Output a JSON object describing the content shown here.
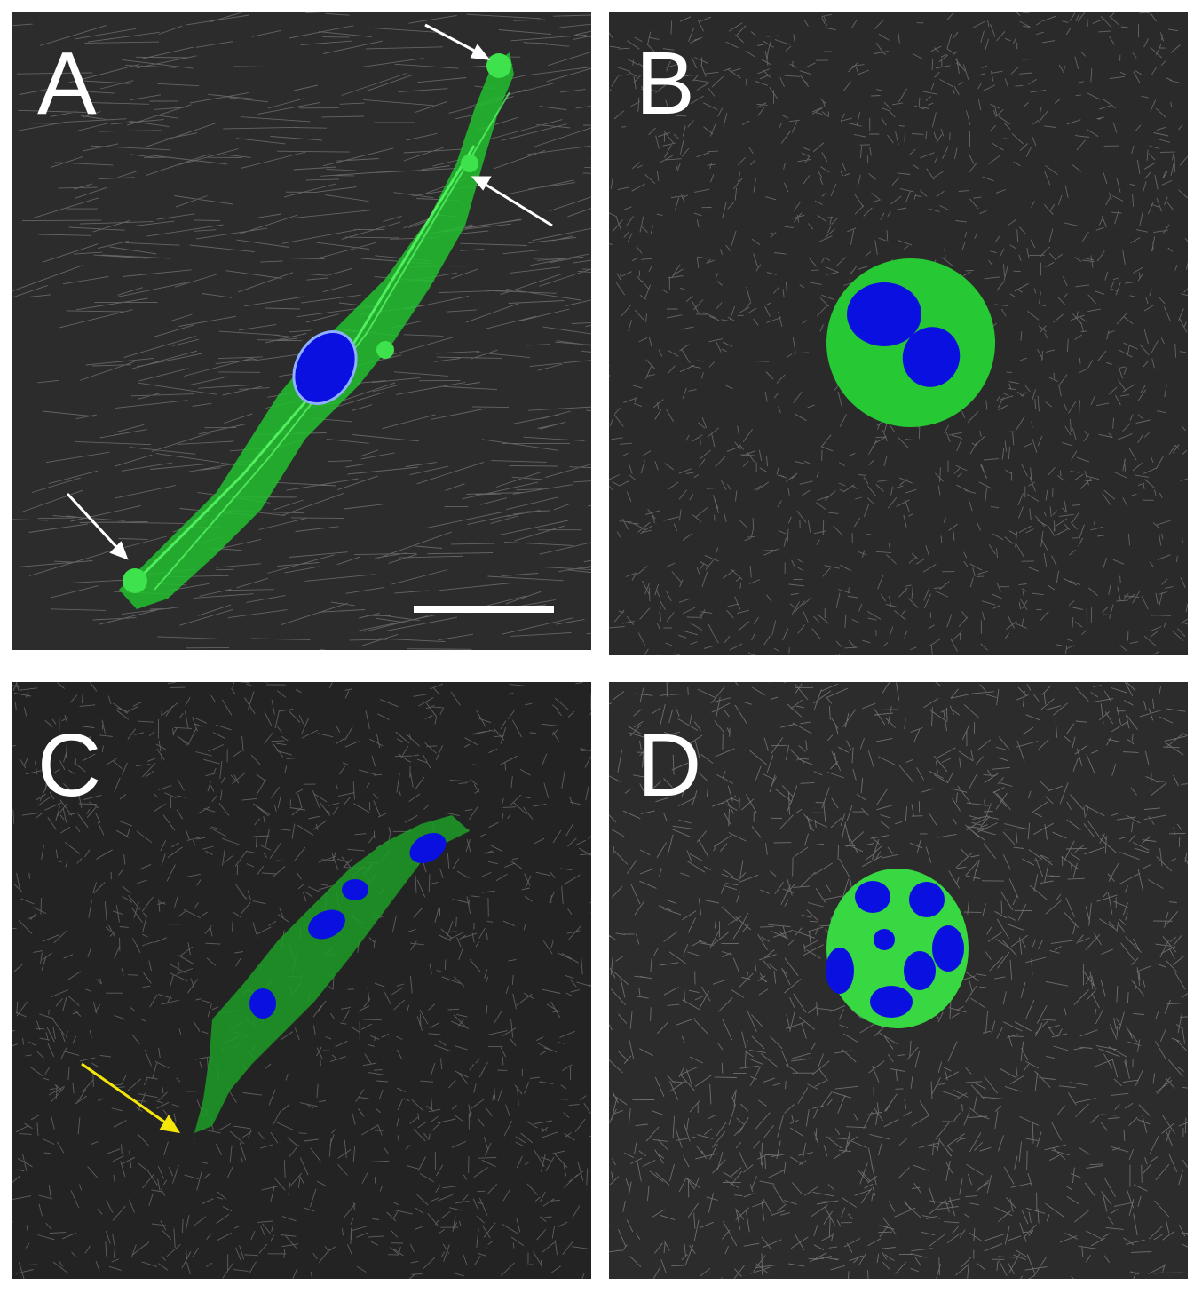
{
  "panels": [
    {
      "id": "a",
      "letter": "A",
      "scale_bar": true,
      "arrow_colors": [
        "#ffffff"
      ]
    },
    {
      "id": "b",
      "letter": "B"
    },
    {
      "id": "c",
      "letter": "C",
      "arrow_colors": [
        "#f5e60a"
      ]
    },
    {
      "id": "d",
      "letter": "D"
    }
  ],
  "colors": {
    "background": "#2b2b2b",
    "fibers": "#e6e6e6",
    "cell": "#2fd43a",
    "nuclei": "#0a14e6",
    "arrow_white": "#ffffff",
    "arrow_yellow": "#f5e60a"
  }
}
